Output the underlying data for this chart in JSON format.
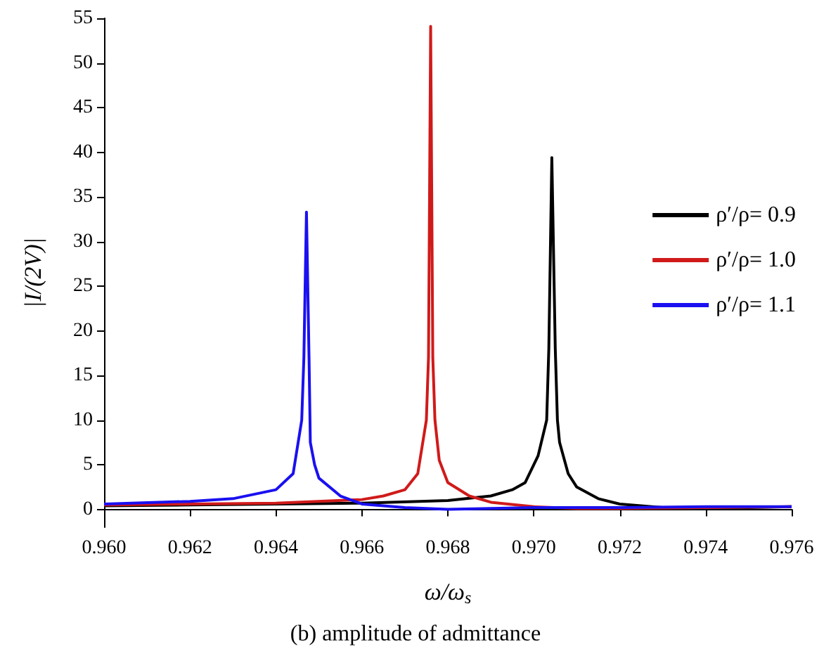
{
  "chart_data": {
    "type": "line",
    "xlabel": "ω/ω$_{s}$",
    "ylabel": "|I/(2V)|",
    "annotations": [
      "(b) amplitude of admittance"
    ],
    "xlim": [
      0.96,
      0.976
    ],
    "xticks": [
      {
        "value": 0.96,
        "label": "0.960"
      },
      {
        "value": 0.962,
        "label": "0.962"
      },
      {
        "value": 0.964,
        "label": "0.964"
      },
      {
        "value": 0.966,
        "label": "0.966"
      },
      {
        "value": 0.968,
        "label": "0.968"
      },
      {
        "value": 0.97,
        "label": "0.970"
      },
      {
        "value": 0.972,
        "label": "0.972"
      },
      {
        "value": 0.974,
        "label": "0.974"
      },
      {
        "value": 0.976,
        "label": "0.976"
      }
    ],
    "ylim": [
      -2,
      55
    ],
    "yticks": [
      0,
      5,
      10,
      15,
      20,
      25,
      30,
      35,
      40,
      45,
      50,
      55
    ],
    "legend": "right",
    "grid": false,
    "marker": "none",
    "line_style": "solid",
    "series": [
      {
        "name": "ρ′/ρ= 0.9",
        "color": "#000000",
        "x": [
          0.96,
          0.962,
          0.964,
          0.966,
          0.968,
          0.969,
          0.9695,
          0.9698,
          0.9701,
          0.9703,
          0.97035,
          0.97042,
          0.9705,
          0.97055,
          0.9706,
          0.9708,
          0.971,
          0.9715,
          0.972,
          0.973,
          0.974,
          0.975,
          0.976
        ],
        "values": [
          0.4,
          0.5,
          0.6,
          0.7,
          1.0,
          1.5,
          2.2,
          3,
          6,
          10,
          18,
          39.4,
          18,
          10,
          7.5,
          4,
          2.5,
          1.2,
          0.6,
          0.2,
          0.2,
          0.2,
          0.3
        ]
      },
      {
        "name": "ρ′/ρ= 1.0",
        "color": "#d01a1a",
        "x": [
          0.96,
          0.962,
          0.964,
          0.966,
          0.9665,
          0.967,
          0.9673,
          0.9675,
          0.96755,
          0.9676,
          0.96765,
          0.9677,
          0.9678,
          0.968,
          0.9685,
          0.969,
          0.97,
          0.971,
          0.972,
          0.974,
          0.976
        ],
        "values": [
          0.5,
          0.6,
          0.7,
          1.1,
          1.5,
          2.2,
          4,
          10,
          17,
          54.1,
          17,
          10,
          5.5,
          3,
          1.5,
          0.8,
          0.3,
          0.1,
          0.1,
          0.2,
          0.3
        ]
      },
      {
        "name": "ρ′/ρ= 1.1",
        "color": "#1a10f0",
        "x": [
          0.96,
          0.962,
          0.963,
          0.964,
          0.9644,
          0.9646,
          0.96465,
          0.96471,
          0.96477,
          0.9648,
          0.9649,
          0.965,
          0.9655,
          0.966,
          0.967,
          0.968,
          0.97,
          0.972,
          0.974,
          0.976
        ],
        "values": [
          0.6,
          0.9,
          1.2,
          2.2,
          4,
          10,
          17,
          33.3,
          17,
          7.5,
          5,
          3.5,
          1.5,
          0.6,
          0.2,
          0,
          0.2,
          0.2,
          0.3,
          0.3
        ]
      }
    ]
  }
}
